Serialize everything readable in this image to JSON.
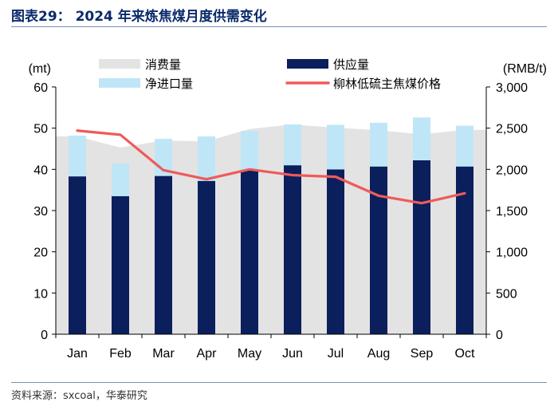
{
  "title": "图表29： 2024 年来炼焦煤月度供需变化",
  "source": "资料来源：sxcoal，华泰研究",
  "colors": {
    "consumption": "#e3e3e3",
    "supply": "#0b1f5c",
    "net_import": "#bfe6f7",
    "price": "#ef5a5a",
    "title": "#0a2a6b"
  },
  "chart_data": {
    "type": "bar",
    "categories": [
      "Jan",
      "Feb",
      "Mar",
      "Apr",
      "May",
      "Jun",
      "Jul",
      "Aug",
      "Sep",
      "Oct"
    ],
    "y_left": {
      "label": "(mt)",
      "lim": [
        0,
        60
      ],
      "ticks": [
        "0",
        "10",
        "20",
        "30",
        "40",
        "50",
        "60"
      ]
    },
    "y_right": {
      "label": "(RMB/t)",
      "lim": [
        0,
        3000
      ],
      "ticks": [
        "0",
        "500",
        "1,000",
        "1,500",
        "2,000",
        "2,500",
        "3,000"
      ]
    },
    "legend_position": "top",
    "series": [
      {
        "name": "消费量",
        "type": "area",
        "axis": "left",
        "values": [
          48.0,
          45.3,
          47.0,
          46.8,
          49.8,
          50.9,
          50.1,
          49.5,
          48.5,
          49.6
        ]
      },
      {
        "name": "供应量",
        "type": "bar",
        "axis": "left",
        "values": [
          38.3,
          33.5,
          38.4,
          37.2,
          39.8,
          41.0,
          40.0,
          40.7,
          42.2,
          40.7
        ]
      },
      {
        "name": "净进口量",
        "type": "bar-stacked",
        "axis": "left",
        "values": [
          9.9,
          7.9,
          9.0,
          10.8,
          9.5,
          9.9,
          10.8,
          10.6,
          10.4,
          9.9
        ]
      },
      {
        "name": "柳林低硫主焦煤价格",
        "type": "line",
        "axis": "right",
        "values": [
          2470,
          2420,
          1990,
          1880,
          2000,
          1930,
          1910,
          1680,
          1590,
          1710
        ]
      }
    ]
  }
}
